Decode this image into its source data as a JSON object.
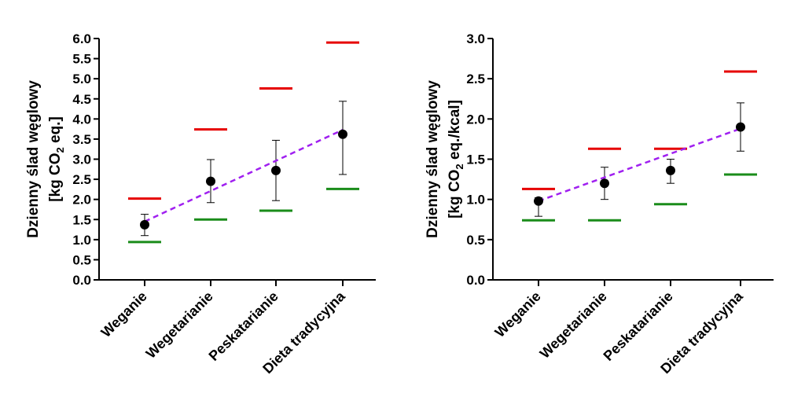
{
  "chart_data": [
    {
      "type": "scatter",
      "ylabel_line1": "Dzienny ślad węglowy",
      "ylabel_line2_pre": "[kg CO",
      "ylabel_line2_sub": "2",
      "ylabel_line2_post": " eq.]",
      "ylim": [
        0,
        6.0
      ],
      "yticks": [
        "0.0",
        "0.5",
        "1.0",
        "1.5",
        "2.0",
        "2.5",
        "3.0",
        "3.5",
        "4.0",
        "4.5",
        "5.0",
        "5.5",
        "6.0"
      ],
      "categories": [
        "Weganie",
        "Wegetarianie",
        "Peskatarianie",
        "Dieta tradycyjna"
      ],
      "mean": [
        1.37,
        2.45,
        2.72,
        3.62
      ],
      "err_low": [
        1.1,
        1.92,
        1.97,
        2.62
      ],
      "err_high": [
        1.63,
        2.99,
        3.47,
        4.44
      ],
      "upper_bound": [
        2.02,
        3.74,
        4.76,
        5.9
      ],
      "lower_bound": [
        0.94,
        1.5,
        1.72,
        2.26
      ],
      "trend": {
        "start": 1.45,
        "end": 3.73
      },
      "colors": {
        "mean": "#000000",
        "upper": "#e60000",
        "lower": "#1a8c1a",
        "trend": "#a020f0"
      }
    },
    {
      "type": "scatter",
      "ylabel_line1": "Dzienny ślad węglowy",
      "ylabel_line2_pre": "[kg CO",
      "ylabel_line2_sub": "2",
      "ylabel_line2_post": " eq./kcal]",
      "ylim": [
        0,
        3.0
      ],
      "yticks": [
        "0.0",
        "0.5",
        "1.0",
        "1.5",
        "2.0",
        "2.5",
        "3.0"
      ],
      "categories": [
        "Weganie",
        "Wegetarianie",
        "Peskatarianie",
        "Dieta tradycyjna"
      ],
      "mean": [
        0.98,
        1.2,
        1.36,
        1.9
      ],
      "err_low": [
        0.79,
        1.0,
        1.2,
        1.6
      ],
      "err_high": [
        1.02,
        1.4,
        1.5,
        2.2
      ],
      "upper_bound": [
        1.13,
        1.63,
        1.63,
        2.59
      ],
      "lower_bound": [
        0.74,
        0.74,
        0.94,
        1.31
      ],
      "trend": {
        "start": 0.98,
        "end": 1.88
      },
      "colors": {
        "mean": "#000000",
        "upper": "#e60000",
        "lower": "#1a8c1a",
        "trend": "#a020f0"
      }
    }
  ]
}
